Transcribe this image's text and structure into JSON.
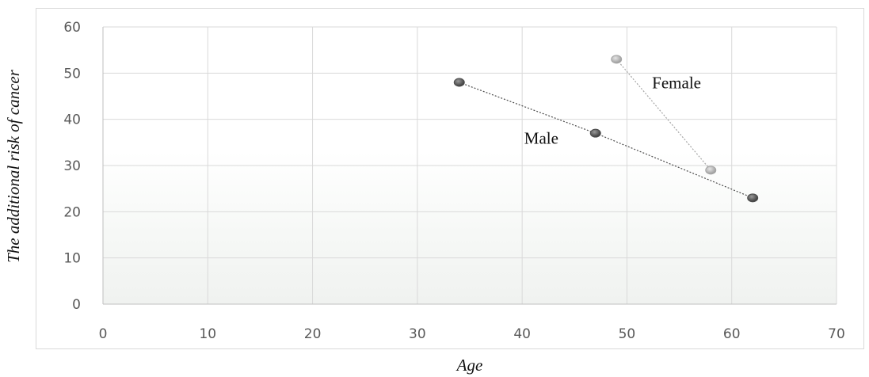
{
  "chart_data": {
    "type": "scatter",
    "xlabel": "Age",
    "ylabel": "The additional risk of cancer",
    "xlim": [
      0,
      70
    ],
    "ylim": [
      0,
      60
    ],
    "x_ticks": [
      "0",
      "10",
      "20",
      "30",
      "40",
      "50",
      "60",
      "70"
    ],
    "y_ticks": [
      "0",
      "10",
      "20",
      "30",
      "40",
      "50",
      "60"
    ],
    "grid": true,
    "series": [
      {
        "name": "Male",
        "color": "#4d4d4d",
        "points": [
          {
            "x": 34,
            "y": 48
          },
          {
            "x": 47,
            "y": 37
          },
          {
            "x": 62,
            "y": 23
          }
        ]
      },
      {
        "name": "Female",
        "color": "#a6a6a6",
        "points": [
          {
            "x": 49,
            "y": 53
          },
          {
            "x": 58,
            "y": 29
          }
        ]
      }
    ]
  }
}
